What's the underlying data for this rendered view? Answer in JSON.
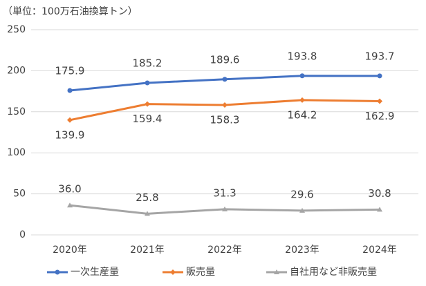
{
  "chart_data": {
    "type": "line",
    "subtitle": "（単位：100万石油換算トン）",
    "categories": [
      "2020年",
      "2021年",
      "2022年",
      "2023年",
      "2024年"
    ],
    "series": [
      {
        "name": "一次生産量",
        "color": "#4472c4",
        "marker": "circle",
        "values": [
          175.9,
          185.2,
          189.6,
          193.8,
          193.7
        ],
        "value_labels": [
          "175.9",
          "185.2",
          "189.6",
          "193.8",
          "193.7"
        ]
      },
      {
        "name": "販売量",
        "color": "#ed7d31",
        "marker": "diamond",
        "values": [
          139.9,
          159.4,
          158.3,
          164.2,
          162.9
        ],
        "value_labels": [
          "139.9",
          "159.4",
          "158.3",
          "164.2",
          "162.9"
        ]
      },
      {
        "name": "自社用など非販売量",
        "color": "#a5a5a5",
        "marker": "triangle",
        "values": [
          36.0,
          25.8,
          31.3,
          29.6,
          30.8
        ],
        "value_labels": [
          "36.0",
          "25.8",
          "31.3",
          "29.6",
          "30.8"
        ]
      }
    ],
    "ylim": [
      0,
      250
    ],
    "yticks": [
      0,
      50,
      100,
      150,
      200,
      250
    ],
    "grid": true,
    "legend": "bottom"
  }
}
